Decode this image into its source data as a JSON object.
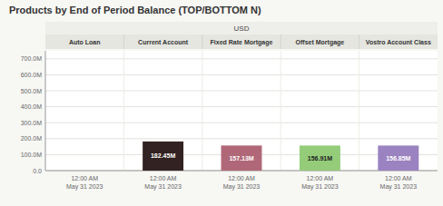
{
  "chart_data": {
    "type": "bar",
    "title": "Products by End of Period Balance (TOP/BOTTOM N)",
    "subtitle": "USD",
    "categories": [
      "Auto Loan",
      "Current Account",
      "Fixed Rate Mortgage",
      "Offset Mortgage",
      "Vostro Account Class"
    ],
    "values": [
      0,
      182450000,
      157130000,
      156910000,
      156850000
    ],
    "value_labels": [
      null,
      "182.45M",
      "157.13M",
      "156.91M",
      "156.85M"
    ],
    "data_labels": true,
    "colors": [
      "#f0f0f0",
      "#332222",
      "#b06878",
      "#94cc7a",
      "#9b82c0"
    ],
    "annotations": [
      "12:00 AM\nMay 31 2023",
      "12:00 AM\nMay 31 2023",
      "12:00 AM\nMay 31 2023",
      "12:00 AM\nMay 31 2023",
      "12:00 AM\nMay 31 2023"
    ],
    "ylim": [
      0,
      750000000
    ],
    "yticks": [
      {
        "value": 0,
        "label": "0.0"
      },
      {
        "value": 100000000,
        "label": "100.0M"
      },
      {
        "value": 200000000,
        "label": "200.0M"
      },
      {
        "value": 300000000,
        "label": "300.0M"
      },
      {
        "value": 400000000,
        "label": "400.0M"
      },
      {
        "value": 500000000,
        "label": "500.0M"
      },
      {
        "value": 600000000,
        "label": "600.0M"
      },
      {
        "value": 700000000,
        "label": "700.0M"
      }
    ],
    "grid": true
  }
}
